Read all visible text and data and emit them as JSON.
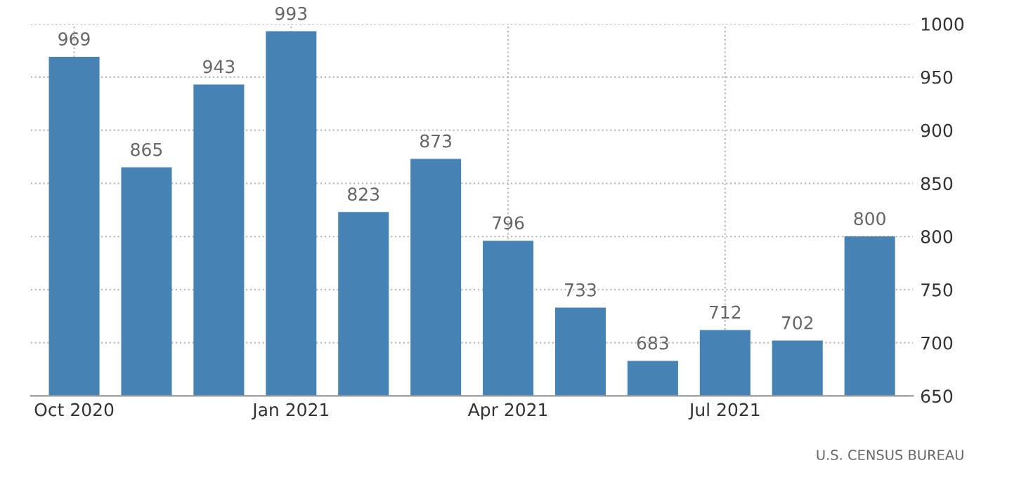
{
  "chart_data": {
    "type": "bar",
    "categories": [
      "Oct 2020",
      null,
      null,
      "Jan 2021",
      null,
      null,
      "Apr 2021",
      null,
      null,
      "Jul 2021",
      null,
      null
    ],
    "values": [
      969,
      865,
      943,
      993,
      823,
      873,
      796,
      733,
      683,
      712,
      702,
      800
    ],
    "color": "#4682b4",
    "ylim": [
      650,
      1000
    ],
    "yticks": [
      650,
      700,
      750,
      800,
      850,
      900,
      950,
      1000
    ],
    "grid": true,
    "data_labels": true,
    "annotations": [
      "U.S. CENSUS BUREAU"
    ]
  }
}
